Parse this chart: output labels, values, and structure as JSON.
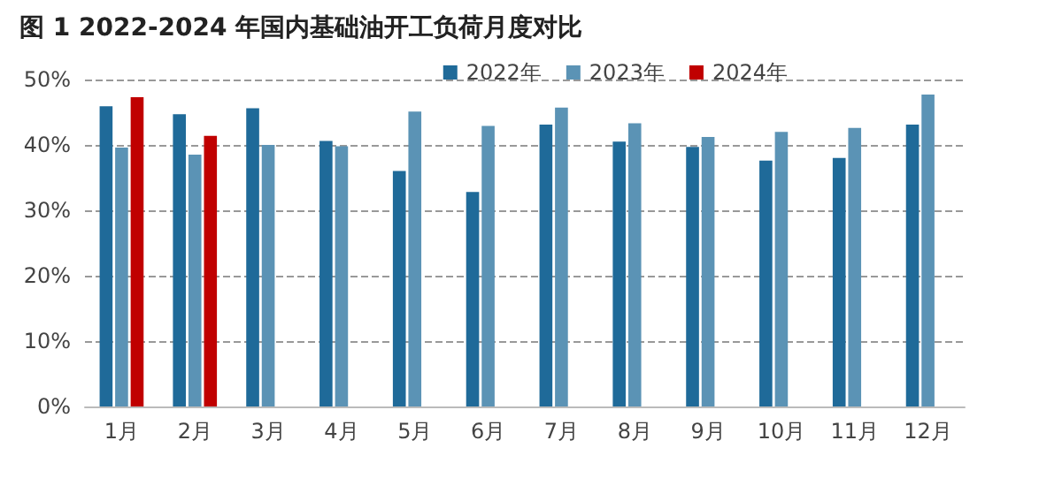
{
  "chart_data": {
    "type": "bar",
    "title": "图 1 2022-2024 年国内基础油开工负荷月度对比",
    "categories": [
      "1月",
      "2月",
      "3月",
      "4月",
      "5月",
      "6月",
      "7月",
      "8月",
      "9月",
      "10月",
      "11月",
      "12月"
    ],
    "series": [
      {
        "name": "2022年",
        "color": "#1f6a99",
        "values": [
          45.9,
          44.7,
          45.6,
          40.6,
          36.0,
          32.8,
          43.1,
          40.5,
          39.7,
          37.6,
          38.0,
          43.1
        ]
      },
      {
        "name": "2023年",
        "color": "#5b93b5",
        "values": [
          39.6,
          38.5,
          40.0,
          39.8,
          45.1,
          42.9,
          45.7,
          43.3,
          41.2,
          42.0,
          42.6,
          47.7
        ]
      },
      {
        "name": "2024年",
        "color": "#c00000",
        "values": [
          47.3,
          41.4,
          null,
          null,
          null,
          null,
          null,
          null,
          null,
          null,
          null,
          null
        ]
      }
    ],
    "ylim": [
      0,
      50
    ],
    "yticks": [
      {
        "value": 0,
        "label": "0%"
      },
      {
        "value": 10,
        "label": "10%"
      },
      {
        "value": 20,
        "label": "20%"
      },
      {
        "value": 30,
        "label": "30%"
      },
      {
        "value": 40,
        "label": "40%"
      },
      {
        "value": 50,
        "label": "50%"
      }
    ],
    "grid": "y",
    "legend": "top right"
  }
}
